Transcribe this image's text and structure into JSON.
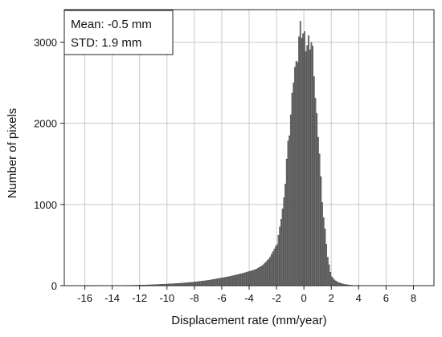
{
  "chart_data": {
    "type": "bar",
    "xlabel": "Displacement rate (mm/year)",
    "ylabel": "Number of pixels",
    "xlim": [
      -17.5,
      9.5
    ],
    "ylim": [
      0,
      3400
    ],
    "xticks": [
      -16,
      -14,
      -12,
      -10,
      -8,
      -6,
      -4,
      -2,
      0,
      2,
      4,
      6,
      8
    ],
    "yticks": [
      0,
      1000,
      2000,
      3000
    ],
    "grid": true,
    "annotations": [
      "Mean: -0.5 mm",
      "STD: 1.9 mm"
    ],
    "bin_width": 0.1,
    "points": [
      [
        -16,
        0
      ],
      [
        -14,
        2
      ],
      [
        -12,
        6
      ],
      [
        -11,
        12
      ],
      [
        -10,
        20
      ],
      [
        -9,
        30
      ],
      [
        -8,
        45
      ],
      [
        -7,
        65
      ],
      [
        -6,
        95
      ],
      [
        -5.5,
        110
      ],
      [
        -5,
        130
      ],
      [
        -4.5,
        150
      ],
      [
        -4,
        175
      ],
      [
        -3.5,
        200
      ],
      [
        -3,
        250
      ],
      [
        -2.5,
        340
      ],
      [
        -2,
        500
      ],
      [
        -1.75,
        700
      ],
      [
        -1.5,
        1000
      ],
      [
        -1.25,
        1500
      ],
      [
        -1,
        2050
      ],
      [
        -0.75,
        2500
      ],
      [
        -0.5,
        2850
      ],
      [
        -0.25,
        3100
      ],
      [
        0,
        3200
      ],
      [
        0.2,
        2800
      ],
      [
        0.4,
        3120
      ],
      [
        0.55,
        3000
      ],
      [
        0.75,
        2600
      ],
      [
        1,
        2000
      ],
      [
        1.25,
        1300
      ],
      [
        1.5,
        750
      ],
      [
        1.75,
        350
      ],
      [
        2,
        120
      ],
      [
        2.25,
        70
      ],
      [
        2.5,
        40
      ],
      [
        3,
        15
      ],
      [
        3.5,
        5
      ],
      [
        4,
        0
      ],
      [
        9,
        0
      ]
    ]
  }
}
